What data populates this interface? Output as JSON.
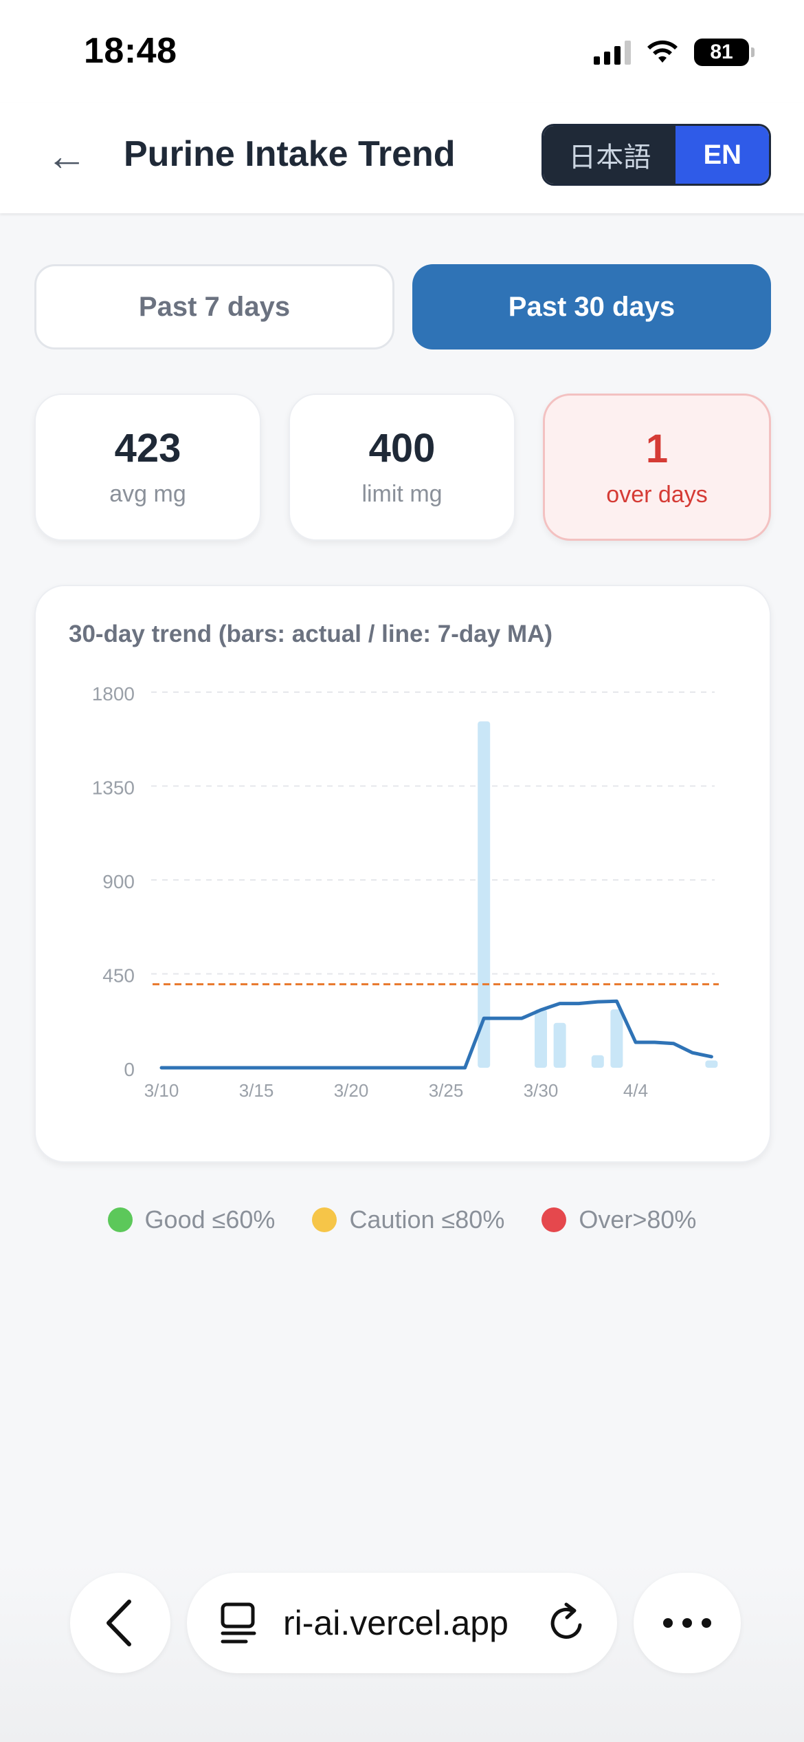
{
  "status_bar": {
    "time": "18:48",
    "battery": "81"
  },
  "header": {
    "title": "Purine Intake Trend",
    "lang_ja": "日本語",
    "lang_en": "EN"
  },
  "tabs": {
    "past7": "Past 7 days",
    "past30": "Past 30 days"
  },
  "stats": [
    {
      "value": "423",
      "label": "avg mg"
    },
    {
      "value": "400",
      "label": "limit mg"
    },
    {
      "value": "1",
      "label": "over days"
    }
  ],
  "chart_title": "30-day trend (bars: actual / line: 7-day MA)",
  "chart_data": {
    "type": "bar",
    "title": "30-day trend (bars: actual / line: 7-day MA)",
    "xlabel": "",
    "ylabel": "",
    "ylim": [
      0,
      1800
    ],
    "yticks": [
      0,
      450,
      900,
      1350,
      1800
    ],
    "xtick_labels": [
      "3/10",
      "3/15",
      "3/20",
      "3/25",
      "3/30",
      "4/4"
    ],
    "grid": true,
    "categories": [
      "3/10",
      "3/11",
      "3/12",
      "3/13",
      "3/14",
      "3/15",
      "3/16",
      "3/17",
      "3/18",
      "3/19",
      "3/20",
      "3/21",
      "3/22",
      "3/23",
      "3/24",
      "3/25",
      "3/26",
      "3/27",
      "3/28",
      "3/29",
      "3/30",
      "3/31",
      "4/1",
      "4/2",
      "4/3",
      "4/4",
      "4/5",
      "4/6",
      "4/7",
      "4/8"
    ],
    "series": [
      {
        "name": "actual",
        "values": [
          0,
          0,
          0,
          0,
          0,
          0,
          0,
          0,
          0,
          0,
          0,
          0,
          0,
          0,
          0,
          0,
          0,
          1660,
          0,
          0,
          280,
          215,
          0,
          60,
          280,
          0,
          0,
          0,
          0,
          35
        ]
      },
      {
        "name": "7-day MA",
        "values": [
          0,
          0,
          0,
          0,
          0,
          0,
          0,
          0,
          0,
          0,
          0,
          0,
          0,
          0,
          0,
          0,
          0,
          237,
          237,
          237,
          277,
          308,
          308,
          316,
          319,
          122,
          122,
          116,
          72,
          53
        ]
      }
    ],
    "limit": 400
  },
  "legend": [
    {
      "label": "Good ≤60%",
      "color": "#5cc85a"
    },
    {
      "label": "Caution ≤80%",
      "color": "#f6c548"
    },
    {
      "label": "Over>80%",
      "color": "#e5484d"
    }
  ],
  "browser": {
    "url": "ri-ai.vercel.app"
  },
  "colors": {
    "bar": "#c9e6f7",
    "ma_line": "#2f73b6",
    "limit_line": "#e8782c",
    "grid": "#e5e7eb",
    "accent": "#2f73b6"
  }
}
